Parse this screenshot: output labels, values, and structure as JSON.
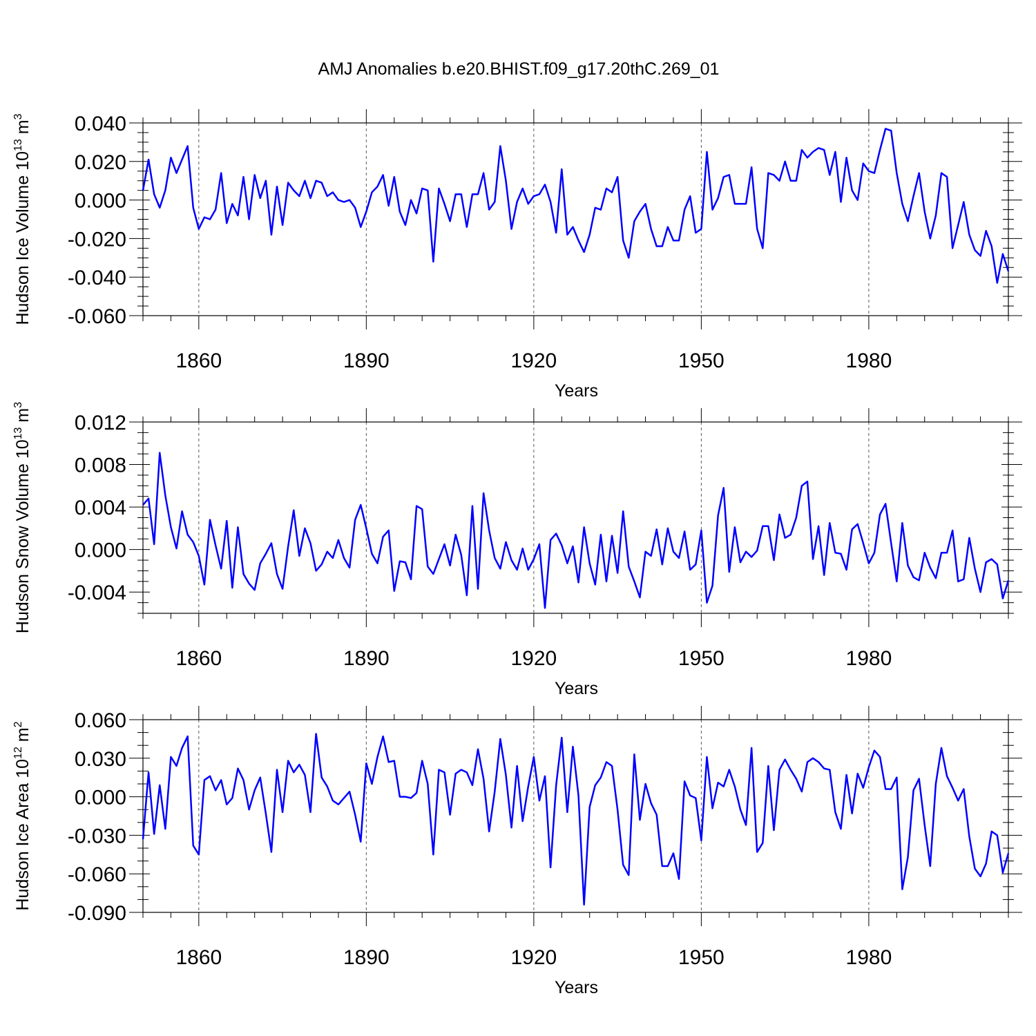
{
  "title": "AMJ Anomalies b.e20.BHIST.f09_g17.20thC.269_01",
  "chart_data": [
    {
      "type": "line",
      "name": "hudson-ice-volume",
      "xlabel": "Years",
      "ylabel": {
        "base": "Hudson Ice Volume 10",
        "exp": "13",
        "unit": " m",
        "unit_exp": "3"
      },
      "xlim": [
        1850,
        2005
      ],
      "ylim": [
        -0.06,
        0.04
      ],
      "xticks": [
        1860,
        1890,
        1920,
        1950,
        1980
      ],
      "xtick_labels": [
        "1860",
        "1890",
        "1920",
        "1950",
        "1980"
      ],
      "yticks": [
        -0.06,
        -0.04,
        -0.02,
        0.0,
        0.02,
        0.04
      ],
      "ytick_labels": [
        "-0.060",
        "-0.040",
        "-0.020",
        "0.000",
        "0.020",
        "0.040"
      ],
      "y_minor_step": 0.005,
      "x_minor_step": 5,
      "grid": "vertical dashed at major x ticks",
      "color": "#0000ff",
      "x_start": 1850,
      "values": [
        0.005,
        0.021,
        0.003,
        -0.004,
        0.005,
        0.022,
        0.014,
        0.021,
        0.028,
        -0.004,
        -0.015,
        -0.009,
        -0.01,
        -0.005,
        0.014,
        -0.012,
        -0.002,
        -0.008,
        0.012,
        -0.01,
        0.013,
        0.001,
        0.01,
        -0.018,
        0.007,
        -0.013,
        0.009,
        0.005,
        0.002,
        0.01,
        0.001,
        0.01,
        0.009,
        0.002,
        0.004,
        0.0,
        -0.001,
        0.0,
        -0.004,
        -0.014,
        -0.006,
        0.004,
        0.007,
        0.013,
        -0.003,
        0.012,
        -0.006,
        -0.013,
        0.0,
        -0.007,
        0.006,
        0.005,
        -0.032,
        0.006,
        -0.002,
        -0.011,
        0.003,
        0.003,
        -0.014,
        0.003,
        0.003,
        0.014,
        -0.005,
        -0.001,
        0.028,
        0.01,
        -0.015,
        -0.001,
        0.006,
        -0.002,
        0.002,
        0.003,
        0.008,
        -0.001,
        -0.017,
        0.016,
        -0.018,
        -0.014,
        -0.021,
        -0.027,
        -0.018,
        -0.004,
        -0.005,
        0.006,
        0.004,
        0.012,
        -0.021,
        -0.03,
        -0.011,
        -0.006,
        -0.002,
        -0.015,
        -0.024,
        -0.024,
        -0.014,
        -0.021,
        -0.021,
        -0.005,
        0.002,
        -0.017,
        -0.015,
        0.025,
        -0.005,
        0.001,
        0.012,
        0.013,
        -0.002,
        -0.002,
        -0.002,
        0.017,
        -0.015,
        -0.025,
        0.014,
        0.013,
        0.01,
        0.02,
        0.01,
        0.01,
        0.026,
        0.022,
        0.025,
        0.027,
        0.026,
        0.013,
        0.025,
        -0.001,
        0.022,
        0.005,
        0.0,
        0.019,
        0.015,
        0.014,
        0.026,
        0.037,
        0.036,
        0.014,
        -0.002,
        -0.011,
        0.002,
        0.014,
        -0.006,
        -0.02,
        -0.008,
        0.014,
        0.012,
        -0.025,
        -0.013,
        -0.001,
        -0.018,
        -0.026,
        -0.029,
        -0.016,
        -0.024,
        -0.043,
        -0.028,
        -0.037
      ]
    },
    {
      "type": "line",
      "name": "hudson-snow-volume",
      "xlabel": "Years",
      "ylabel": {
        "base": "Hudson Snow Volume 10",
        "exp": "13",
        "unit": " m",
        "unit_exp": "3"
      },
      "xlim": [
        1850,
        2005
      ],
      "ylim": [
        -0.006,
        0.012
      ],
      "xticks": [
        1860,
        1890,
        1920,
        1950,
        1980
      ],
      "xtick_labels": [
        "1860",
        "1890",
        "1920",
        "1950",
        "1980"
      ],
      "yticks": [
        -0.004,
        0.0,
        0.004,
        0.008,
        0.012
      ],
      "ytick_labels": [
        "-0.004",
        "0.000",
        "0.004",
        "0.008",
        "0.012"
      ],
      "y_minor_step": 0.001,
      "x_minor_step": 5,
      "grid": "vertical dashed at major x ticks",
      "color": "#0000ff",
      "x_start": 1850,
      "values": [
        0.0042,
        0.0048,
        0.0005,
        0.0091,
        0.0051,
        0.0021,
        0.0001,
        0.0036,
        0.0014,
        0.0007,
        -0.0006,
        -0.0033,
        0.0028,
        0.0004,
        -0.0018,
        0.0027,
        -0.0036,
        0.0021,
        -0.0023,
        -0.0032,
        -0.0038,
        -0.0013,
        -0.0004,
        0.0006,
        -0.0023,
        -0.0037,
        0.0003,
        0.0037,
        -0.0006,
        0.002,
        0.0006,
        -0.002,
        -0.0014,
        -0.0002,
        -0.0008,
        0.0009,
        -0.0008,
        -0.0017,
        0.0028,
        0.0042,
        0.002,
        -0.0004,
        -0.0013,
        0.0012,
        0.0018,
        -0.0039,
        -0.0011,
        -0.0012,
        -0.0028,
        0.0041,
        0.0038,
        -0.0016,
        -0.0023,
        -0.0009,
        0.0005,
        -0.0015,
        0.0014,
        -0.0005,
        -0.0043,
        0.0041,
        -0.0037,
        0.0053,
        0.0018,
        -0.0008,
        -0.0018,
        0.0007,
        -0.001,
        -0.0019,
        0.0001,
        -0.0019,
        -0.0009,
        0.0005,
        -0.0055,
        0.0009,
        0.0015,
        0.0004,
        -0.0013,
        0.0003,
        -0.0031,
        0.0021,
        -0.0013,
        -0.0033,
        0.0014,
        -0.003,
        0.0013,
        -0.0022,
        0.0036,
        -0.0016,
        -0.003,
        -0.0045,
        -0.0002,
        -0.0006,
        0.0019,
        -0.0014,
        0.002,
        -0.0002,
        -0.0008,
        0.0017,
        -0.0019,
        -0.0014,
        0.0018,
        -0.005,
        -0.0034,
        0.0032,
        0.0058,
        -0.0021,
        0.0021,
        -0.0012,
        -0.0002,
        -0.0007,
        -0.0001,
        0.0022,
        0.0022,
        -0.001,
        0.0033,
        0.0011,
        0.0014,
        0.003,
        0.006,
        0.0064,
        -0.0009,
        0.0022,
        -0.0024,
        0.0025,
        -0.0003,
        -0.0004,
        -0.0019,
        0.0019,
        0.0024,
        0.0006,
        -0.0013,
        -0.0003,
        0.0033,
        0.0043,
        0.0006,
        -0.003,
        0.0025,
        -0.0015,
        -0.0026,
        -0.0029,
        -0.0003,
        -0.0017,
        -0.0027,
        -0.0003,
        -0.0003,
        0.0018,
        -0.003,
        -0.0028,
        0.0011,
        -0.0018,
        -0.004,
        -0.0012,
        -0.0009,
        -0.0014,
        -0.0046,
        -0.0029
      ]
    },
    {
      "type": "line",
      "name": "hudson-ice-area",
      "xlabel": "Years",
      "ylabel": {
        "base": "Hudson Ice Area 10",
        "exp": "12",
        "unit": " m",
        "unit_exp": "2"
      },
      "xlim": [
        1850,
        2005
      ],
      "ylim": [
        -0.09,
        0.06
      ],
      "xticks": [
        1860,
        1890,
        1920,
        1950,
        1980
      ],
      "xtick_labels": [
        "1860",
        "1890",
        "1920",
        "1950",
        "1980"
      ],
      "yticks": [
        -0.09,
        -0.06,
        -0.03,
        0.0,
        0.03,
        0.06
      ],
      "ytick_labels": [
        "-0.090",
        "-0.060",
        "-0.030",
        "0.000",
        "0.030",
        "0.060"
      ],
      "y_minor_step": 0.01,
      "x_minor_step": 5,
      "grid": "vertical dashed at major x ticks",
      "color": "#0000ff",
      "x_start": 1850,
      "values": [
        -0.033,
        0.019,
        -0.029,
        0.009,
        -0.025,
        0.031,
        0.024,
        0.038,
        0.047,
        -0.038,
        -0.045,
        0.013,
        0.016,
        0.005,
        0.013,
        -0.006,
        -0.001,
        0.022,
        0.013,
        -0.01,
        0.005,
        0.015,
        -0.013,
        -0.043,
        0.021,
        -0.012,
        0.028,
        0.019,
        0.025,
        0.017,
        -0.012,
        0.049,
        0.015,
        0.008,
        -0.003,
        -0.006,
        -0.001,
        0.004,
        -0.014,
        -0.035,
        0.026,
        0.01,
        0.031,
        0.047,
        0.027,
        0.028,
        0.0,
        0.0,
        -0.001,
        0.003,
        0.028,
        0.01,
        -0.045,
        0.021,
        0.019,
        -0.014,
        0.018,
        0.021,
        0.019,
        0.009,
        0.037,
        0.014,
        -0.027,
        0.004,
        0.045,
        0.017,
        -0.024,
        0.024,
        -0.019,
        0.008,
        0.031,
        -0.003,
        0.016,
        -0.055,
        0.009,
        0.046,
        -0.012,
        0.039,
        0.001,
        -0.084,
        -0.008,
        0.009,
        0.015,
        0.027,
        0.024,
        -0.01,
        -0.053,
        -0.061,
        0.033,
        -0.018,
        0.01,
        -0.005,
        -0.014,
        -0.054,
        -0.054,
        -0.044,
        -0.064,
        0.012,
        0.001,
        -0.001,
        -0.034,
        0.031,
        -0.009,
        0.011,
        0.008,
        0.021,
        0.008,
        -0.01,
        -0.022,
        0.038,
        -0.043,
        -0.036,
        0.024,
        -0.026,
        0.021,
        0.029,
        0.021,
        0.014,
        0.004,
        0.027,
        0.03,
        0.027,
        0.022,
        0.021,
        -0.012,
        -0.025,
        0.017,
        -0.013,
        0.018,
        0.007,
        0.023,
        0.036,
        0.031,
        0.006,
        0.006,
        0.015,
        -0.072,
        -0.047,
        0.005,
        0.014,
        -0.022,
        -0.054,
        0.01,
        0.038,
        0.016,
        0.007,
        -0.003,
        0.006,
        -0.031,
        -0.056,
        -0.062,
        -0.052,
        -0.027,
        -0.03,
        -0.059,
        -0.044
      ]
    }
  ]
}
